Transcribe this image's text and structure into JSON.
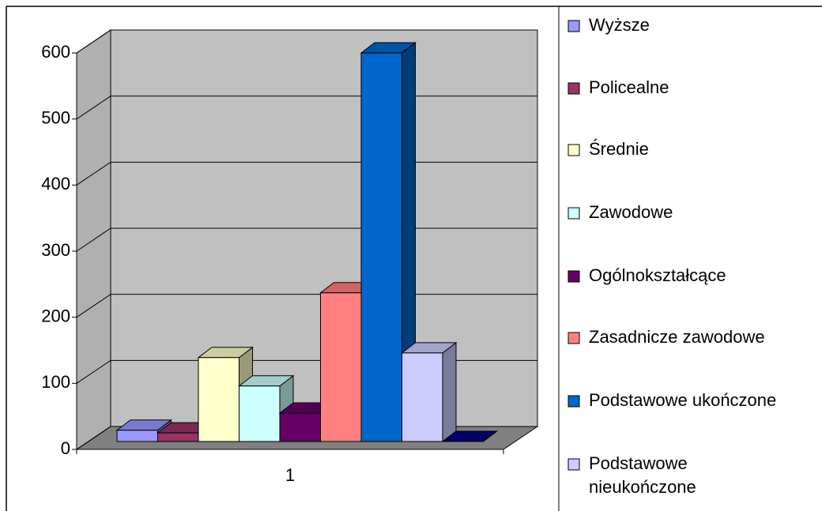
{
  "chart_data": {
    "type": "bar3d",
    "categories": [
      "1"
    ],
    "series": [
      {
        "name": "Wyższe",
        "color": "#9999ff",
        "values": [
          17
        ]
      },
      {
        "name": "Policealne",
        "color": "#993366",
        "values": [
          13
        ]
      },
      {
        "name": "Średnie",
        "color": "#ffffcc",
        "values": [
          127
        ]
      },
      {
        "name": "Zawodowe",
        "color": "#ccffff",
        "values": [
          84
        ]
      },
      {
        "name": "Ogólnokształcące",
        "color": "#660066",
        "values": [
          43
        ]
      },
      {
        "name": "Zasadnicze zawodowe",
        "color": "#ff8080",
        "values": [
          225
        ]
      },
      {
        "name": "Podstawowe ukończone",
        "color": "#0066cc",
        "values": [
          588
        ]
      },
      {
        "name": "Podstawowe nieukończone",
        "color": "#ccccff",
        "values": [
          134
        ]
      },
      {
        "name": null,
        "color": "#000080",
        "values": [
          0
        ]
      }
    ],
    "ylim": [
      0,
      600
    ],
    "yticks": [
      0,
      100,
      200,
      300,
      400,
      500,
      600
    ],
    "grid": true,
    "legend": "right"
  }
}
